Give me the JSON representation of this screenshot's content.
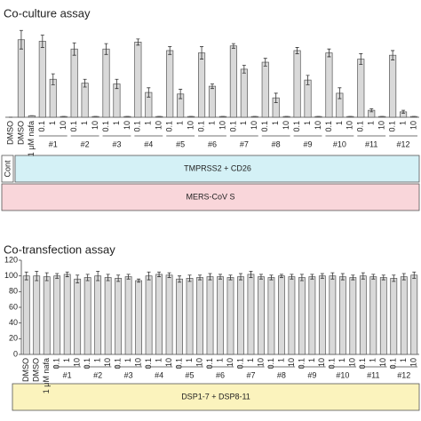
{
  "chart_data": [
    {
      "type": "bar",
      "title": "Co-culture assay",
      "categories": [
        "DMSO",
        "DMSO",
        "1 μM nafa",
        "0.1",
        "1",
        "10",
        "0.1",
        "1",
        "10",
        "0.1",
        "1",
        "10",
        "0.1",
        "1",
        "10",
        "0.1",
        "1",
        "10",
        "0.1",
        "1",
        "10",
        "0.1",
        "1",
        "10",
        "0.1",
        "1",
        "10",
        "0.1",
        "1",
        "10",
        "0.1",
        "1",
        "10",
        "0.1",
        "1",
        "10",
        "0.1",
        "1",
        "10"
      ],
      "groups": [
        "#1",
        "#2",
        "#3",
        "#4",
        "#5",
        "#6",
        "#7",
        "#8",
        "#9",
        "#10",
        "#11",
        "#12"
      ],
      "values": [
        0,
        100,
        2,
        98,
        49,
        1,
        88,
        44,
        1,
        88,
        43,
        1,
        97,
        32,
        1,
        86,
        30,
        1,
        83,
        40,
        1,
        92,
        62,
        1,
        71,
        25,
        1,
        86,
        48,
        1,
        83,
        31,
        1,
        75,
        9,
        1,
        80,
        7,
        1
      ],
      "errors": [
        0,
        12,
        0,
        8,
        7,
        0,
        8,
        5,
        0,
        7,
        6,
        0,
        4,
        6,
        0,
        5,
        6,
        0,
        8,
        3,
        0,
        3,
        5,
        0,
        5,
        6,
        0,
        4,
        6,
        0,
        5,
        7,
        0,
        7,
        2,
        0,
        6,
        2,
        0
      ],
      "color": "#d9d9d9",
      "ylim": [
        0,
        110
      ],
      "annotations": [
        "Cont",
        "TMPRSS2 + CD26",
        "MERS-CoV S"
      ]
    },
    {
      "type": "bar",
      "title": "Co-transfection assay",
      "categories": [
        "DMSO",
        "DMSO",
        "1 μM nafa",
        "0.1",
        "1",
        "10",
        "0.1",
        "1",
        "10",
        "0.1",
        "1",
        "10",
        "0.1",
        "1",
        "10",
        "0.1",
        "1",
        "10",
        "0.1",
        "1",
        "10",
        "0.1",
        "1",
        "10",
        "0.1",
        "1",
        "10",
        "0.1",
        "1",
        "10",
        "0.1",
        "1",
        "10",
        "0.1",
        "1",
        "10",
        "0.1",
        "1",
        "10"
      ],
      "groups": [
        "#1",
        "#2",
        "#3",
        "#4",
        "#5",
        "#6",
        "#7",
        "#8",
        "#9",
        "#10",
        "#11",
        "#12"
      ],
      "values": [
        100,
        100,
        99,
        100,
        102,
        96,
        98,
        100,
        98,
        97,
        99,
        94,
        100,
        102,
        101,
        96,
        97,
        98,
        99,
        99,
        98,
        99,
        102,
        99,
        98,
        100,
        99,
        98,
        99,
        100,
        100,
        99,
        98,
        100,
        99,
        98,
        97,
        99,
        101
      ],
      "errors": [
        5,
        6,
        5,
        3,
        3,
        5,
        4,
        6,
        4,
        4,
        3,
        2,
        5,
        3,
        3,
        4,
        4,
        3,
        4,
        3,
        3,
        4,
        4,
        3,
        3,
        2,
        3,
        4,
        3,
        3,
        4,
        4,
        3,
        4,
        3,
        3,
        4,
        4,
        4
      ],
      "color": "#d9d9d9",
      "ylim": [
        0,
        120
      ],
      "yticks": [
        0,
        20,
        40,
        60,
        80,
        100,
        120
      ],
      "annotations": [
        "DSP1-7 + DSP8-11"
      ]
    }
  ]
}
